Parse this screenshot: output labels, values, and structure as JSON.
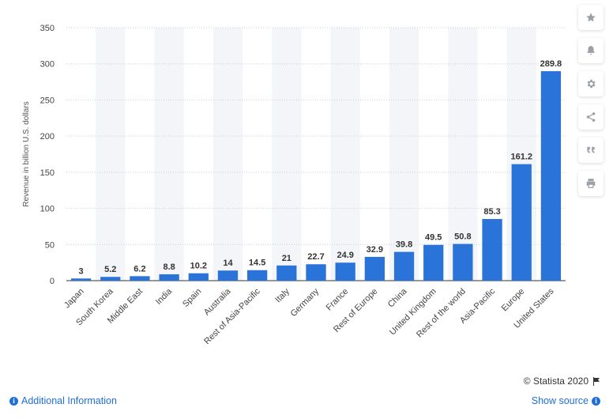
{
  "chart_data": {
    "type": "bar",
    "categories": [
      "Japan",
      "South Korea",
      "Middle East",
      "India",
      "Spain",
      "Australia",
      "Rest of Asia-Pacific",
      "Italy",
      "Germany",
      "France",
      "Rest of Europe",
      "China",
      "United Kingdom",
      "Rest of the world",
      "Asia-Pacific",
      "Europe",
      "United States"
    ],
    "values": [
      3,
      5.2,
      6.2,
      8.8,
      10.2,
      14,
      14.5,
      21,
      22.7,
      24.9,
      32.9,
      39.8,
      49.5,
      50.8,
      85.3,
      161.2,
      289.8
    ],
    "value_labels": [
      "3",
      "5.2",
      "6.2",
      "8.8",
      "10.2",
      "14",
      "14.5",
      "21",
      "22.7",
      "24.9",
      "32.9",
      "39.8",
      "49.5",
      "50.8",
      "85.3",
      "161.2",
      "289.8"
    ],
    "ylabel": "Revenue in billion U.S. dollars",
    "yticks": [
      "0",
      "50",
      "100",
      "150",
      "200",
      "250",
      "300",
      "350"
    ],
    "ylim": [
      0,
      350
    ],
    "grid": true,
    "bar_color": "#2a73d9"
  },
  "toolbar": {
    "icons": [
      "star-icon",
      "bell-icon",
      "gear-icon",
      "share-icon",
      "quote-icon",
      "print-icon"
    ]
  },
  "footer": {
    "copyright": "© Statista 2020",
    "additional_info": "Additional Information",
    "show_source": "Show source"
  }
}
